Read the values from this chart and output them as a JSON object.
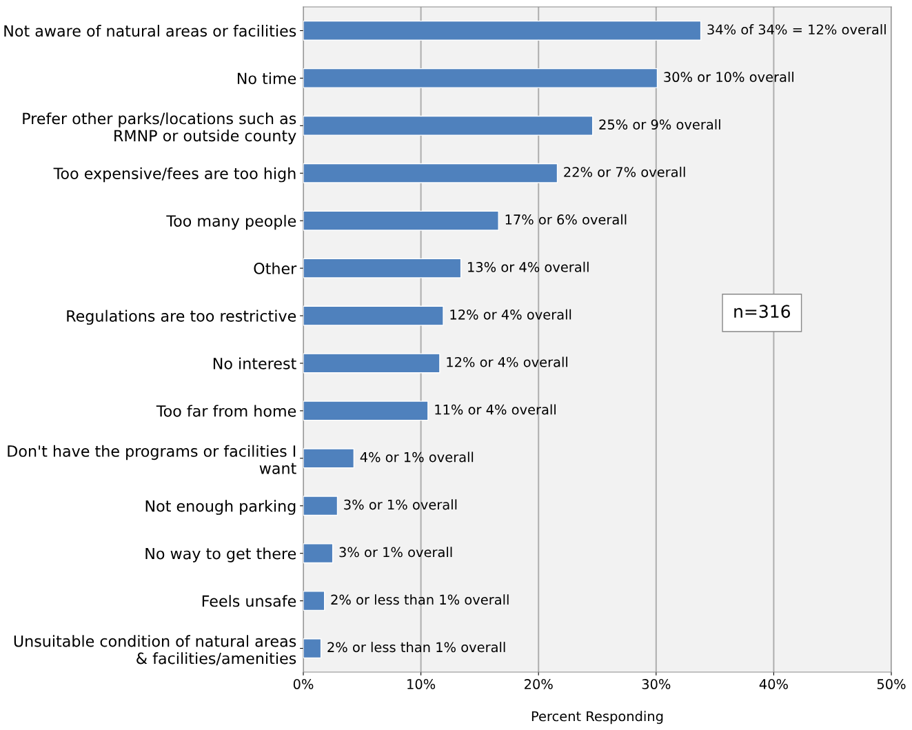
{
  "chart_data": {
    "type": "bar",
    "orientation": "horizontal",
    "xlabel": "Percent Responding",
    "categories": [
      "Not aware of natural areas or facilities",
      "No time",
      "Prefer other parks/locations such as RMNP or outside county",
      "Too expensive/fees are too high",
      "Too many people",
      "Other",
      "Regulations are too restrictive",
      "No interest",
      "Too far from home",
      "Don't have the programs or facilities I want",
      "Not enough parking",
      "No way to get there",
      "Feels unsafe",
      "Unsuitable condition of natural areas & facilities/amenities"
    ],
    "values": [
      33.8,
      30.1,
      24.6,
      21.6,
      16.6,
      13.4,
      11.9,
      11.6,
      10.6,
      4.3,
      2.9,
      2.5,
      1.8,
      1.5
    ],
    "value_labels": [
      "34% of 34% = 12% overall",
      "30% or 10% overall",
      "25% or 9% overall",
      "22% or 7% overall",
      "17% or 6% overall",
      "13% or 4% overall",
      "12% or 4% overall",
      "12% or 4% overall",
      "11% or 4% overall",
      "4% or 1% overall",
      "3% or 1% overall",
      "3% or 1% overall",
      "2% or less than 1% overall",
      "2% or less than 1% overall"
    ],
    "color": "#4f81bd",
    "xlim": [
      0,
      50
    ],
    "xticks": [
      {
        "value": 0,
        "label": "0%"
      },
      {
        "value": 10,
        "label": "10%"
      },
      {
        "value": 20,
        "label": "20%"
      },
      {
        "value": 30,
        "label": "30%"
      },
      {
        "value": 40,
        "label": "40%"
      },
      {
        "value": 50,
        "label": "50%"
      }
    ],
    "grid": "x",
    "annotations": [
      "n=316"
    ]
  }
}
